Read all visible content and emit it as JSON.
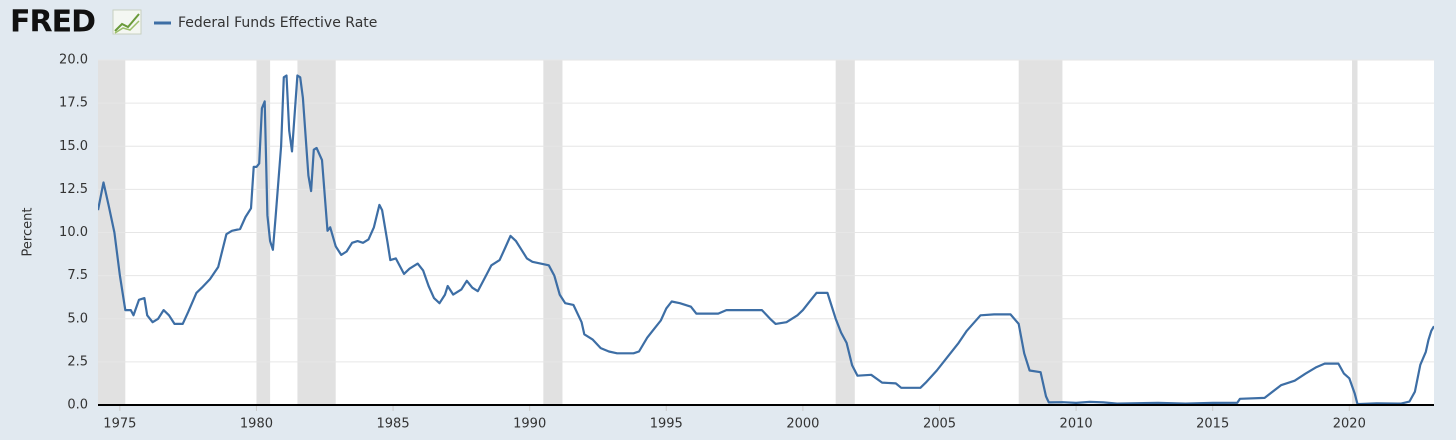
{
  "logo": "FRED",
  "chart_data": {
    "type": "line",
    "ylabel": "Percent",
    "x": [
      1974.2,
      1974.4,
      1974.6,
      1974.8,
      1975.0,
      1975.2,
      1975.4,
      1975.5,
      1975.7,
      1975.9,
      1976.0,
      1976.2,
      1976.4,
      1976.6,
      1976.8,
      1977.0,
      1977.3,
      1977.5,
      1977.8,
      1978.0,
      1978.3,
      1978.6,
      1978.9,
      1979.1,
      1979.4,
      1979.6,
      1979.8,
      1979.9,
      1980.0,
      1980.1,
      1980.2,
      1980.3,
      1980.4,
      1980.5,
      1980.6,
      1980.7,
      1980.9,
      1981.0,
      1981.1,
      1981.2,
      1981.3,
      1981.5,
      1981.6,
      1981.7,
      1981.9,
      1982.0,
      1982.1,
      1982.2,
      1982.4,
      1982.6,
      1982.7,
      1982.9,
      1983.1,
      1983.3,
      1983.5,
      1983.7,
      1983.9,
      1984.1,
      1984.3,
      1984.5,
      1984.6,
      1984.8,
      1984.9,
      1985.1,
      1985.4,
      1985.6,
      1985.9,
      1986.1,
      1986.3,
      1986.5,
      1986.7,
      1986.9,
      1987.0,
      1987.2,
      1987.5,
      1987.7,
      1987.9,
      1988.1,
      1988.4,
      1988.6,
      1988.9,
      1989.1,
      1989.3,
      1989.5,
      1989.7,
      1989.9,
      1990.1,
      1990.4,
      1990.7,
      1990.9,
      1991.1,
      1991.3,
      1991.6,
      1991.9,
      1992.0,
      1992.3,
      1992.6,
      1992.9,
      1993.2,
      1993.5,
      1993.8,
      1994.0,
      1994.3,
      1994.5,
      1994.8,
      1995.0,
      1995.2,
      1995.5,
      1995.9,
      1996.1,
      1996.5,
      1996.9,
      1997.2,
      1997.6,
      1998.0,
      1998.5,
      1998.8,
      1999.0,
      1999.4,
      1999.8,
      2000.0,
      2000.2,
      2000.5,
      2000.9,
      2001.0,
      2001.2,
      2001.4,
      2001.6,
      2001.8,
      2002.0,
      2002.5,
      2002.9,
      2003.4,
      2003.6,
      2004.3,
      2004.5,
      2004.9,
      2005.3,
      2005.7,
      2006.0,
      2006.5,
      2007.0,
      2007.6,
      2007.9,
      2008.1,
      2008.3,
      2008.7,
      2008.9,
      2009.0,
      2009.5,
      2010.0,
      2010.5,
      2011.0,
      2011.5,
      2012.0,
      2013.0,
      2014.0,
      2015.0,
      2015.9,
      2016.0,
      2016.9,
      2017.1,
      2017.5,
      2018.0,
      2018.4,
      2018.8,
      2019.1,
      2019.6,
      2019.8,
      2020.0,
      2020.2,
      2020.3,
      2021.0,
      2021.9,
      2022.2,
      2022.4,
      2022.6,
      2022.8,
      2022.9,
      2023.0,
      2023.1
    ],
    "series": [
      {
        "name": "Federal Funds Effective Rate",
        "color": "#3d6ea5",
        "values": [
          11.3,
          12.9,
          11.5,
          10,
          7.5,
          5.5,
          5.5,
          5.2,
          6.1,
          6.2,
          5.2,
          4.8,
          5.0,
          5.5,
          5.2,
          4.7,
          4.7,
          5.4,
          6.5,
          6.8,
          7.3,
          8.0,
          9.9,
          10.1,
          10.2,
          10.9,
          11.4,
          13.8,
          13.8,
          14.0,
          17.2,
          17.6,
          11.0,
          9.5,
          9.0,
          10.9,
          15.0,
          19.0,
          19.1,
          15.9,
          14.7,
          19.1,
          19.0,
          17.8,
          13.3,
          12.4,
          14.8,
          14.9,
          14.2,
          10.1,
          10.3,
          9.2,
          8.7,
          8.9,
          9.4,
          9.5,
          9.4,
          9.6,
          10.3,
          11.6,
          11.3,
          9.4,
          8.4,
          8.5,
          7.6,
          7.9,
          8.2,
          7.8,
          6.9,
          6.2,
          5.9,
          6.4,
          6.9,
          6.4,
          6.7,
          7.2,
          6.8,
          6.6,
          7.5,
          8.1,
          8.4,
          9.1,
          9.8,
          9.5,
          9.0,
          8.5,
          8.3,
          8.2,
          8.1,
          7.5,
          6.4,
          5.9,
          5.8,
          4.8,
          4.1,
          3.8,
          3.3,
          3.1,
          3.0,
          3.0,
          3.0,
          3.1,
          3.9,
          4.3,
          4.9,
          5.6,
          6.0,
          5.9,
          5.7,
          5.3,
          5.3,
          5.3,
          5.5,
          5.5,
          5.5,
          5.5,
          5.0,
          4.7,
          4.8,
          5.2,
          5.5,
          5.9,
          6.5,
          6.5,
          6.0,
          5.0,
          4.2,
          3.6,
          2.3,
          1.7,
          1.75,
          1.3,
          1.25,
          1.0,
          1.0,
          1.3,
          2.0,
          2.8,
          3.6,
          4.3,
          5.2,
          5.25,
          5.25,
          4.7,
          3.0,
          2.0,
          1.9,
          0.5,
          0.15,
          0.16,
          0.12,
          0.18,
          0.15,
          0.08,
          0.1,
          0.12,
          0.08,
          0.12,
          0.13,
          0.36,
          0.41,
          0.66,
          1.15,
          1.41,
          1.82,
          2.2,
          2.4,
          2.4,
          1.83,
          1.55,
          0.65,
          0.05,
          0.09,
          0.08,
          0.2,
          0.77,
          2.33,
          3.08,
          3.78,
          4.3,
          4.57
        ]
      }
    ],
    "recessions": [
      [
        1973.9,
        1975.2
      ],
      [
        1980.0,
        1980.5
      ],
      [
        1981.5,
        1982.9
      ],
      [
        1990.5,
        1991.2
      ],
      [
        2001.2,
        2001.9
      ],
      [
        2007.9,
        2009.5
      ],
      [
        2020.1,
        2020.3
      ]
    ],
    "xlim": [
      1974.2,
      2023.1
    ],
    "xticks": [
      1975,
      1980,
      1985,
      1990,
      1995,
      2000,
      2005,
      2010,
      2015,
      2020
    ],
    "ylim": [
      0,
      20
    ],
    "yticks": [
      {
        "value": 0,
        "label": "0.0"
      },
      2.5,
      {
        "value": 5,
        "label": "5.0"
      },
      7.5,
      {
        "value": 10,
        "label": "10.0"
      },
      12.5,
      {
        "value": 15,
        "label": "15.0"
      },
      17.5,
      {
        "value": 20,
        "label": "20.0"
      }
    ],
    "grid": true
  }
}
